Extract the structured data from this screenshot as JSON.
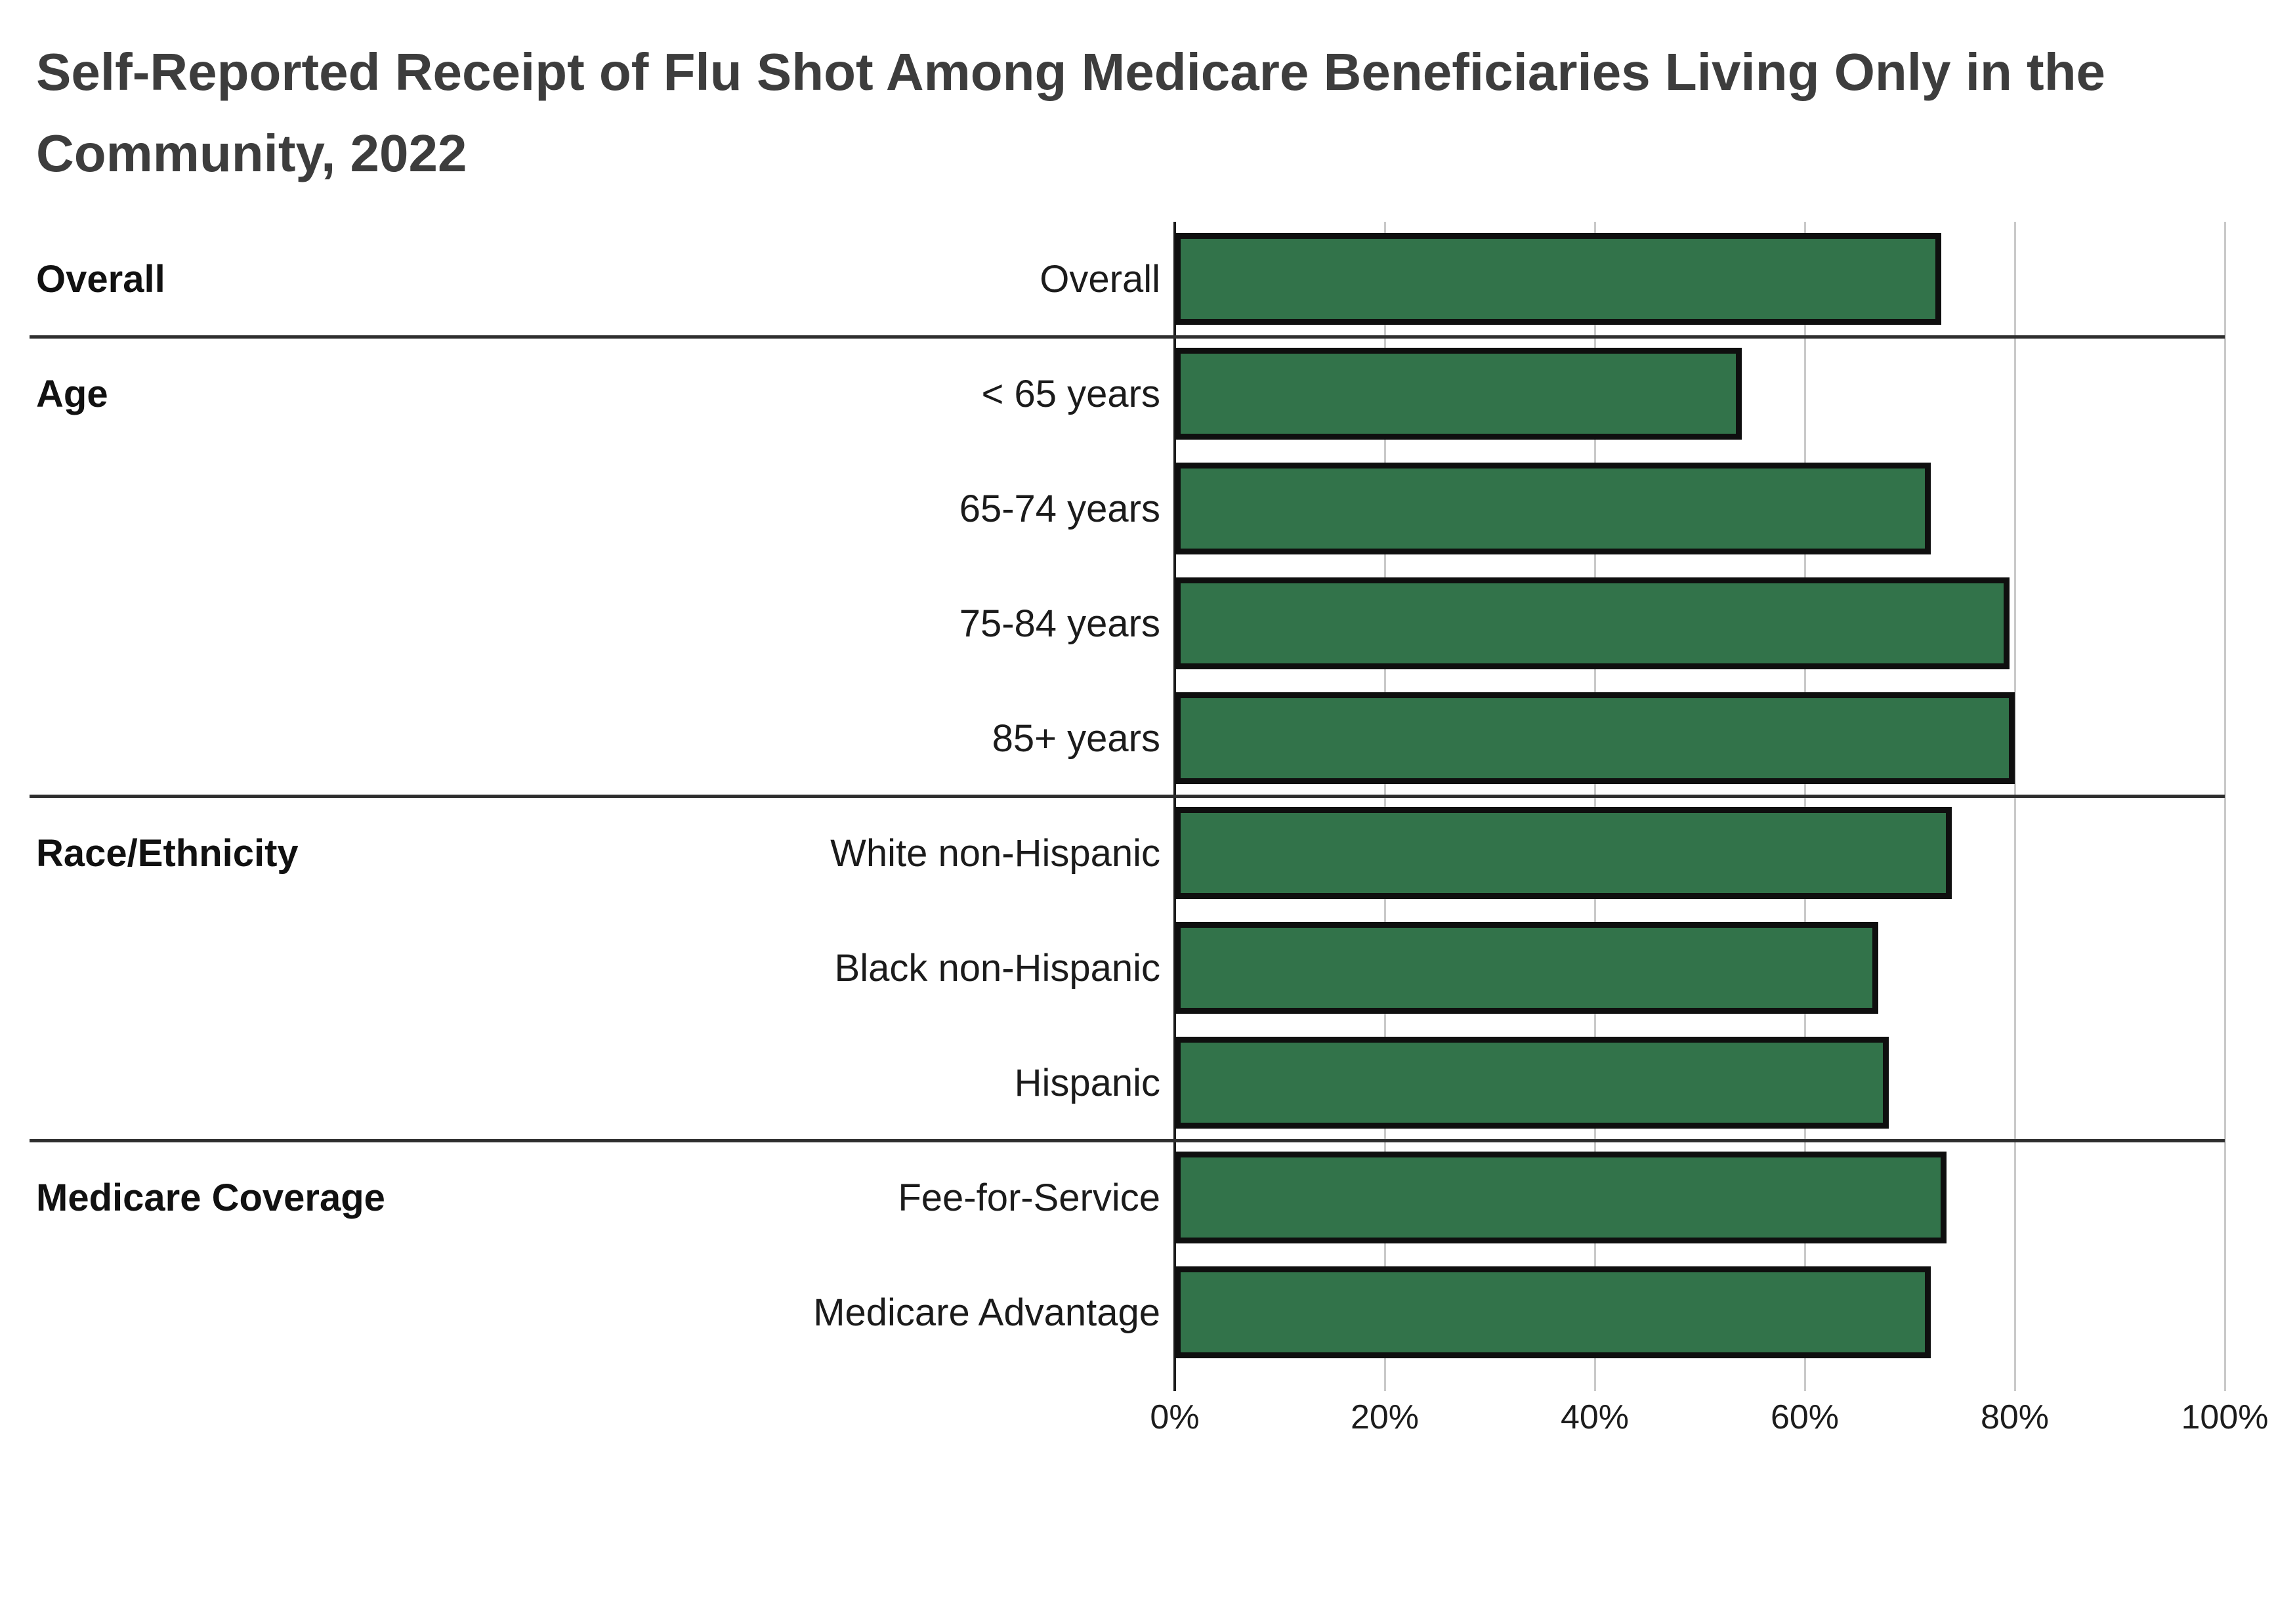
{
  "title": {
    "lines": [
      "Self-Reported Receipt of Flu Shot Among Medicare Beneficiaries Living Only in the",
      "Community, 2022"
    ],
    "full": "Self-Reported Receipt of Flu Shot Among Medicare Beneficiaries Living Only in the Community, 2022"
  },
  "chart_data": {
    "type": "bar",
    "orientation": "horizontal",
    "title": "Self-Reported Receipt of Flu Shot Among Medicare Beneficiaries Living Only in the Community, 2022",
    "unit": "percent",
    "xlabel": "",
    "ylabel": "",
    "x_axis": {
      "tick_labels": [
        "0%",
        "20%",
        "40%",
        "60%",
        "80%",
        "100%"
      ],
      "min": 0,
      "max": 100,
      "grid": true
    },
    "legend": "none",
    "groups": [
      {
        "name": "Overall",
        "categories": [
          "Overall"
        ],
        "values": [
          73
        ]
      },
      {
        "name": "Age",
        "categories": [
          "< 65 years",
          "65-74 years",
          "75-84 years",
          "85+ years"
        ],
        "values": [
          54,
          72,
          79.5,
          80
        ]
      },
      {
        "name": "Race/Ethnicity",
        "categories": [
          "White non-Hispanic",
          "Black non-Hispanic",
          "Hispanic"
        ],
        "values": [
          74,
          67,
          68
        ]
      },
      {
        "name": "Medicare Coverage",
        "categories": [
          "Fee-for-Service",
          "Medicare Advantage"
        ],
        "values": [
          73.5,
          72
        ]
      }
    ],
    "colors": {
      "bar_fill": "#32734A",
      "bar_border": "#0F0F0F",
      "gridline": "#C9C9C9",
      "axis_line": "#1C1C1C",
      "group_separator": "#2E2E2E",
      "title_text": "#3D3D3D",
      "label_text": "#1B1B1B",
      "background": "#FFFFFF"
    }
  }
}
